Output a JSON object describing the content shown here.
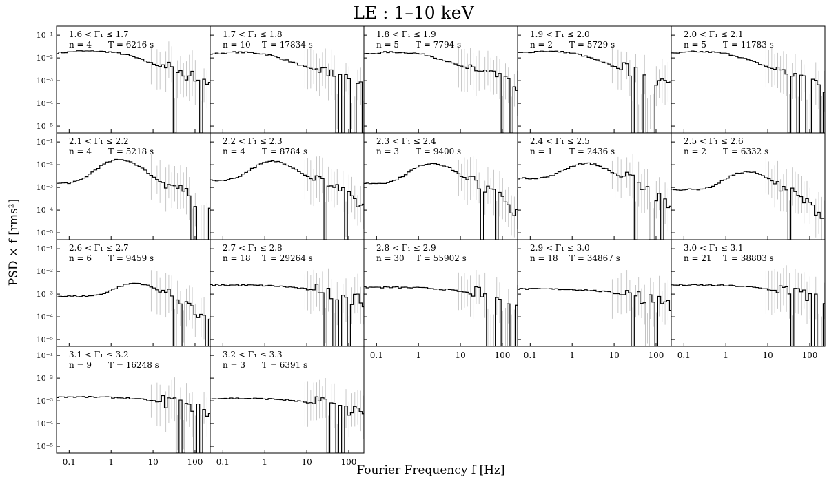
{
  "figure": {
    "title": "LE :  1–10 keV",
    "ylabel": "PSD × f [rms²]",
    "xlabel": "Fourier Frequency f [Hz]"
  },
  "chart_data": {
    "type": "line",
    "x_scale": "log",
    "y_scale": "log",
    "xlim": [
      0.05,
      230
    ],
    "ylim": [
      5e-06,
      0.25
    ],
    "x_ticks": [
      0.1,
      1,
      10,
      100
    ],
    "x_tick_labels": [
      "0.1",
      "1",
      "10",
      "100"
    ],
    "y_ticks": [
      1e-05,
      0.0001,
      0.001,
      0.01,
      0.1
    ],
    "y_tick_labels": [
      "10⁻⁵",
      "10⁻⁴",
      "10⁻³",
      "10⁻²",
      "10⁻¹"
    ],
    "panels": [
      {
        "range": "1.6 < Γ₁ ≤ 1.7",
        "n": "n = 4",
        "T": "T = 6216 s",
        "profile": {
          "kind": "lowpeak",
          "level": 0.02,
          "fpk": 1.5
        }
      },
      {
        "range": "1.7 < Γ₁ ≤ 1.8",
        "n": "n = 10",
        "T": "T = 17834 s",
        "profile": {
          "kind": "lowpeak",
          "level": 0.018,
          "fpk": 1.0
        }
      },
      {
        "range": "1.8 < Γ₁ ≤ 1.9",
        "n": "n = 5",
        "T": "T = 7794 s",
        "profile": {
          "kind": "lowpeak",
          "level": 0.018,
          "fpk": 1.2
        }
      },
      {
        "range": "1.9 < Γ₁ ≤ 2.0",
        "n": "n = 2",
        "T": "T = 5729 s",
        "profile": {
          "kind": "lowpeak",
          "level": 0.02,
          "fpk": 1.0
        }
      },
      {
        "range": "2.0 < Γ₁ ≤ 2.1",
        "n": "n = 5",
        "T": "T = 11783 s",
        "profile": {
          "kind": "lowpeak",
          "level": 0.019,
          "fpk": 1.0
        }
      },
      {
        "range": "2.1 < Γ₁ ≤ 2.2",
        "n": "n = 4",
        "T": "T = 5218 s",
        "profile": {
          "kind": "hump",
          "base": 0.0015,
          "peak": 0.015,
          "fpk": 1.5
        }
      },
      {
        "range": "2.2 < Γ₁ ≤ 2.3",
        "n": "n = 4",
        "T": "T = 8784 s",
        "profile": {
          "kind": "hump",
          "base": 0.002,
          "peak": 0.012,
          "fpk": 1.5
        }
      },
      {
        "range": "2.3 < Γ₁ ≤ 2.4",
        "n": "n = 3",
        "T": "T = 9400 s",
        "profile": {
          "kind": "hump",
          "base": 0.0015,
          "peak": 0.01,
          "fpk": 2.0
        }
      },
      {
        "range": "2.4 < Γ₁ ≤ 2.5",
        "n": "n = 1",
        "T": "T = 2436 s",
        "profile": {
          "kind": "hump",
          "base": 0.0025,
          "peak": 0.009,
          "fpk": 2.0
        }
      },
      {
        "range": "2.5 < Γ₁ ≤ 2.6",
        "n": "n = 2",
        "T": "T = 6332 s",
        "profile": {
          "kind": "hump",
          "base": 0.0008,
          "peak": 0.004,
          "fpk": 3.0
        }
      },
      {
        "range": "2.6 < Γ₁ ≤ 2.7",
        "n": "n = 6",
        "T": "T = 9459 s",
        "profile": {
          "kind": "hump",
          "base": 0.0008,
          "peak": 0.0022,
          "fpk": 3.5
        }
      },
      {
        "range": "2.7 < Γ₁ ≤ 2.8",
        "n": "n = 18",
        "T": "T = 29264 s",
        "profile": {
          "kind": "flat",
          "level": 0.0025
        }
      },
      {
        "range": "2.8 < Γ₁ ≤ 2.9",
        "n": "n = 30",
        "T": "T = 55902 s",
        "profile": {
          "kind": "flat",
          "level": 0.002
        }
      },
      {
        "range": "2.9 < Γ₁ ≤ 3.0",
        "n": "n = 18",
        "T": "T = 34867 s",
        "profile": {
          "kind": "flat",
          "level": 0.0017
        }
      },
      {
        "range": "3.0 < Γ₁ ≤ 3.1",
        "n": "n = 21",
        "T": "T = 38803 s",
        "profile": {
          "kind": "flat",
          "level": 0.0025
        }
      },
      {
        "range": "3.1 < Γ₁ ≤ 3.2",
        "n": "n = 9",
        "T": "T = 16248 s",
        "profile": {
          "kind": "flat",
          "level": 0.0015
        }
      },
      {
        "range": "3.2 < Γ₁ ≤ 3.3",
        "n": "n = 3",
        "T": "T = 6391 s",
        "profile": {
          "kind": "flat",
          "level": 0.0013
        }
      }
    ]
  }
}
